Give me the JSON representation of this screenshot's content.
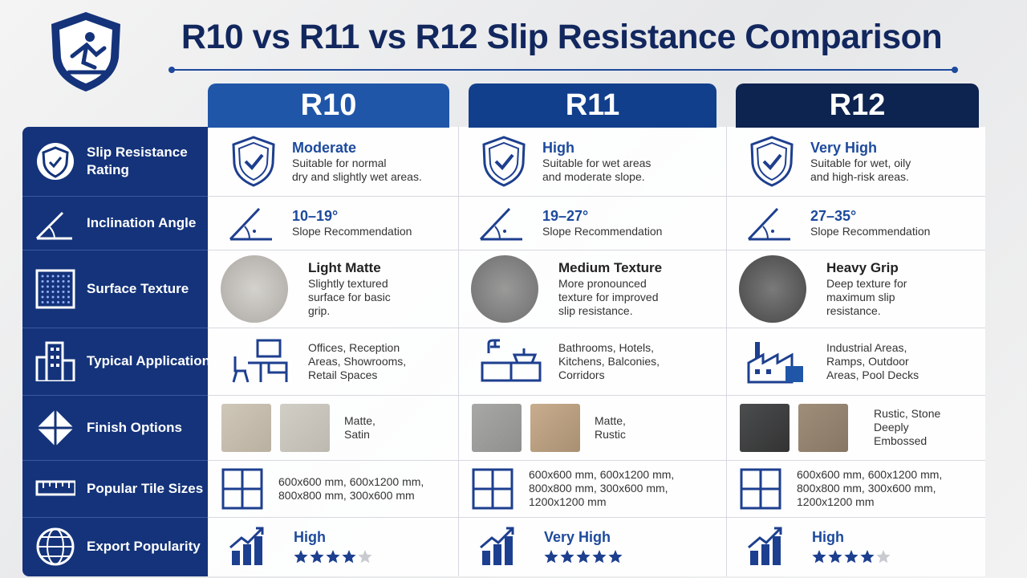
{
  "header": {
    "title": "R10 vs R11 vs R12 Slip Resistance Comparison"
  },
  "table": {
    "columns": [
      "R10",
      "R11",
      "R12"
    ],
    "rows": [
      {
        "label": [
          "Slip Resistance",
          "Rating"
        ],
        "cells": [
          {
            "heading": "Moderate",
            "lines": [
              "Suitable for normal",
              "dry and slightly wet areas."
            ]
          },
          {
            "heading": "High",
            "lines": [
              "Suitable for wet areas",
              "and moderate slope."
            ]
          },
          {
            "heading": "Very High",
            "lines": [
              "Suitable for wet, oily",
              "and high-risk areas."
            ]
          }
        ]
      },
      {
        "label": [
          "Inclination Angle"
        ],
        "cells": [
          {
            "heading": "10–19°",
            "lines": [
              "Slope Recommendation"
            ]
          },
          {
            "heading": "19–27°",
            "lines": [
              "Slope Recommendation"
            ]
          },
          {
            "heading": "27–35°",
            "lines": [
              "Slope Recommendation"
            ]
          }
        ]
      },
      {
        "label": [
          "Surface Texture"
        ],
        "cells": [
          {
            "heading": "Light Matte",
            "lines": [
              "Slightly textured",
              "surface for basic",
              "grip."
            ]
          },
          {
            "heading": "Medium Texture",
            "lines": [
              "More pronounced",
              "texture for improved",
              "slip resistance."
            ]
          },
          {
            "heading": "Heavy Grip",
            "lines": [
              "Deep texture for",
              "maximum slip",
              "resistance."
            ]
          }
        ]
      },
      {
        "label": [
          "Typical Applications"
        ],
        "cells": [
          {
            "lines": [
              "Offices, Reception",
              "Areas, Showrooms,",
              "Retail Spaces"
            ]
          },
          {
            "lines": [
              "Bathrooms, Hotels,",
              "Kitchens, Balconies,",
              "Corridors"
            ]
          },
          {
            "lines": [
              "Industrial Areas,",
              "Ramps, Outdoor",
              "Areas, Pool Decks"
            ]
          }
        ]
      },
      {
        "label": [
          "Finish Options"
        ],
        "cells": [
          {
            "lines": [
              "Matte,",
              "Satin"
            ]
          },
          {
            "lines": [
              "Matte,",
              "Rustic"
            ]
          },
          {
            "lines": [
              "Rustic, Stone",
              "Deeply",
              "Embossed"
            ]
          }
        ]
      },
      {
        "label": [
          "Popular Tile Sizes"
        ],
        "cells": [
          {
            "lines": [
              "600x600 mm, 600x1200 mm,",
              "800x800 mm, 300x600 mm"
            ]
          },
          {
            "lines": [
              "600x600 mm, 600x1200 mm,",
              "800x800 mm, 300x600 mm,",
              "1200x1200 mm"
            ]
          },
          {
            "lines": [
              "600x600 mm, 600x1200 mm,",
              "800x800 mm, 300x600 mm,",
              "1200x1200 mm"
            ]
          }
        ]
      },
      {
        "label": [
          "Export Popularity"
        ],
        "cells": [
          {
            "heading": "High",
            "stars": 4,
            "star_max": 5
          },
          {
            "heading": "Very High",
            "stars": 5,
            "star_max": 5
          },
          {
            "heading": "High",
            "stars": 4,
            "star_max": 5
          }
        ]
      }
    ]
  }
}
